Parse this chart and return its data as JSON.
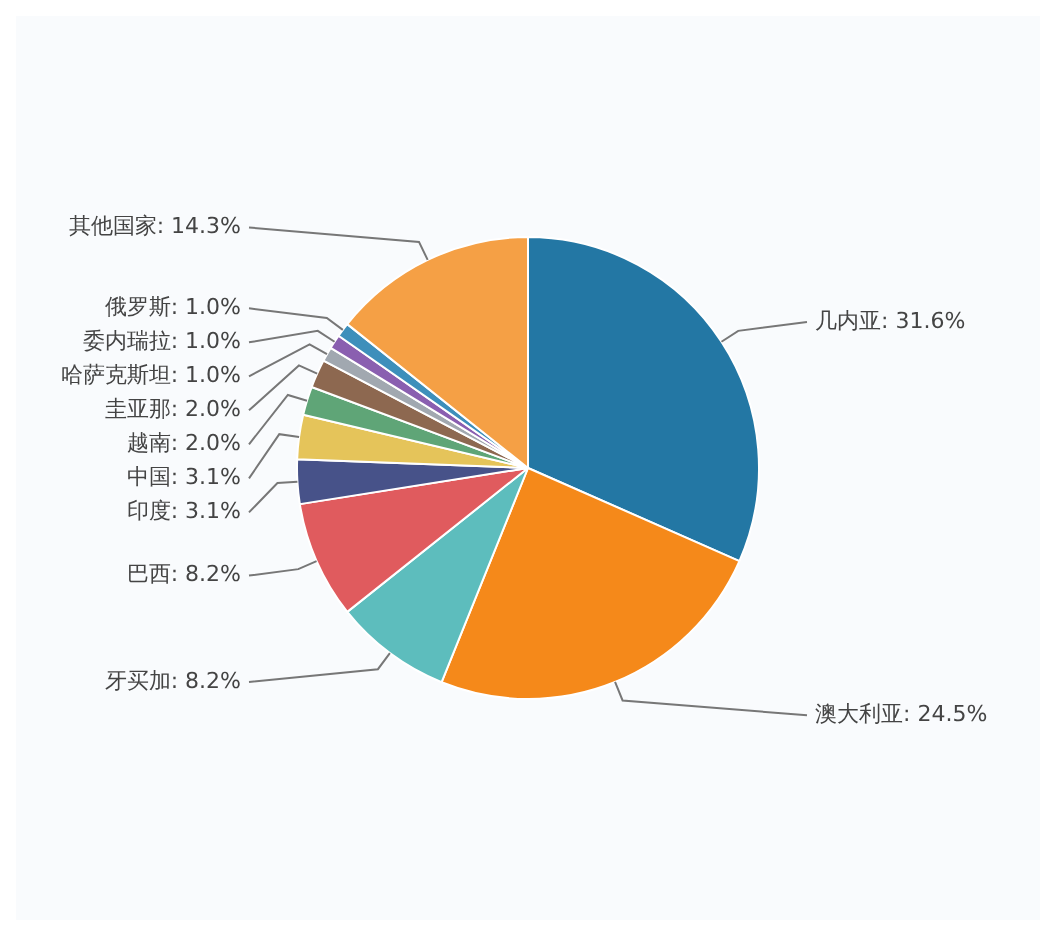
{
  "chart_data": {
    "type": "pie",
    "categories": [
      "几内亚",
      "澳大利亚",
      "牙买加",
      "巴西",
      "印度",
      "中国",
      "越南",
      "圭亚那",
      "哈萨克斯坦",
      "委内瑞拉",
      "俄罗斯",
      "其他国家"
    ],
    "values": [
      31.6,
      24.5,
      8.2,
      8.2,
      3.1,
      3.1,
      2.0,
      2.0,
      1.0,
      1.0,
      1.0,
      14.3
    ],
    "value_labels": [
      "31.6%",
      "24.5%",
      "8.2%",
      "8.2%",
      "3.1%",
      "3.1%",
      "2.0%",
      "2.0%",
      "1.0%",
      "1.0%",
      "1.0%",
      "14.3%"
    ],
    "colors": [
      "#2377a4",
      "#f5891a",
      "#5dbdbd",
      "#e05b5e",
      "#475289",
      "#e5c45a",
      "#5fa577",
      "#8d6850",
      "#a1a8b0",
      "#8a5fb0",
      "#3d8fbb",
      "#f5a045"
    ],
    "legend": false
  }
}
